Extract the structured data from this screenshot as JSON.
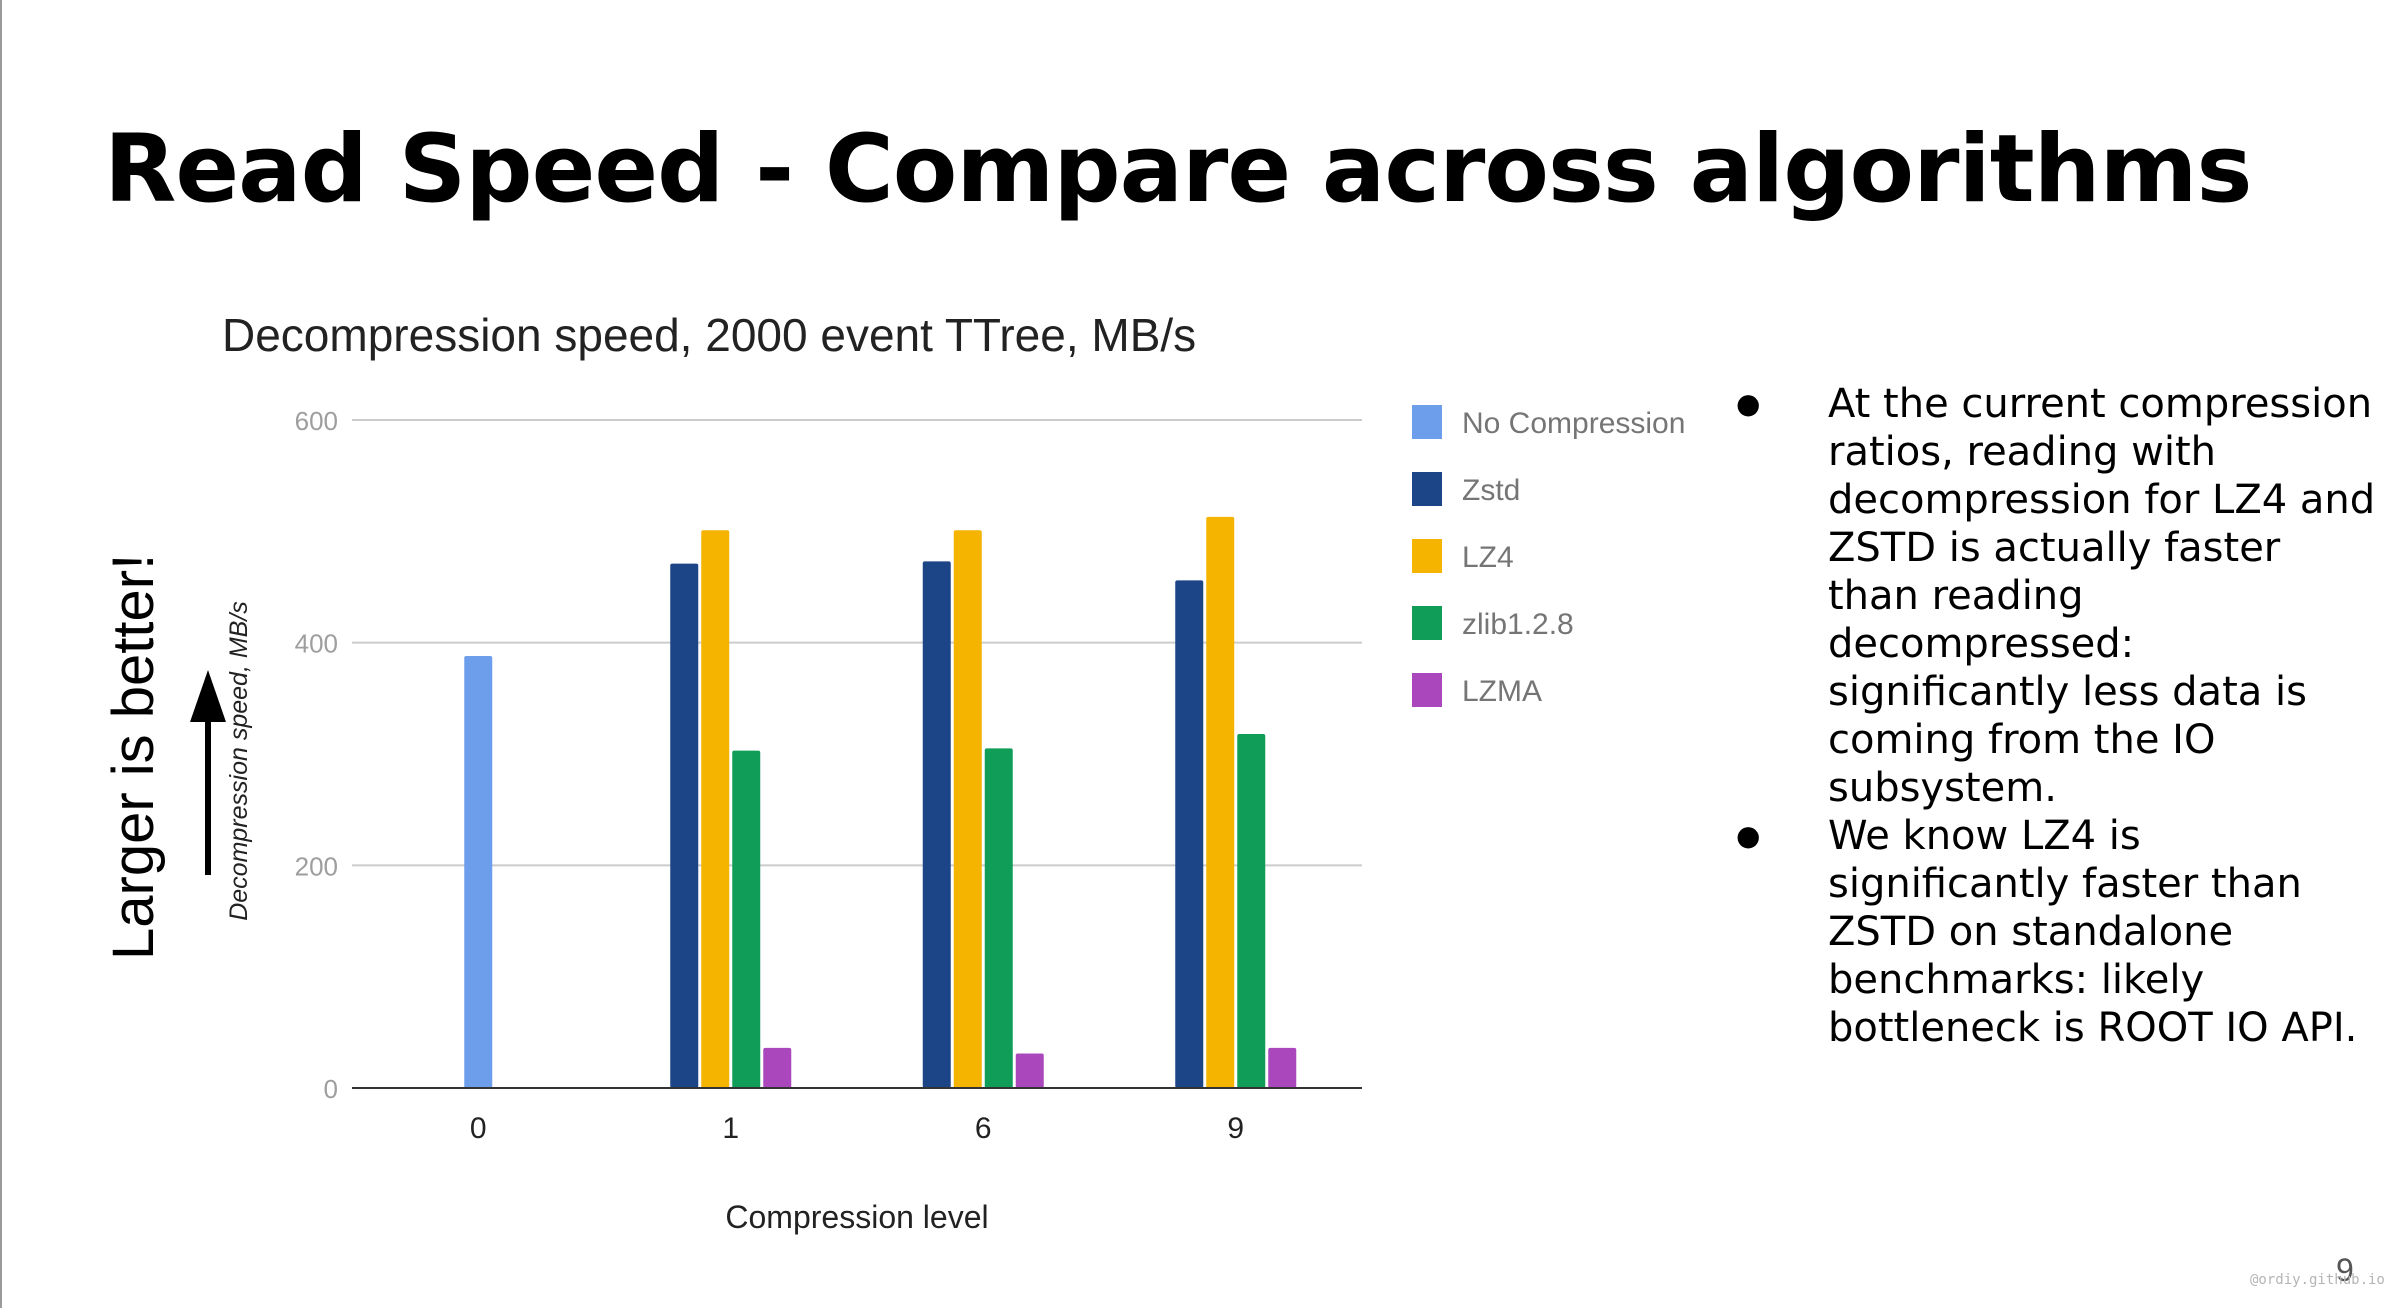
{
  "slide": {
    "title": "Read Speed - Compare across algorithms",
    "side_note": "Larger is better!",
    "page_number": "9",
    "watermark": "@ordiy.github.io",
    "bullets": [
      "At the current compression ratios, reading with decompression for LZ4 and ZSTD is actually faster than reading decompressed: significantly less data is coming from the IO subsystem.",
      "We know LZ4 is significantly faster than ZSTD on standalone benchmarks: likely bottleneck is ROOT IO API."
    ]
  },
  "chart_data": {
    "type": "bar",
    "title": "Decompression speed, 2000 event TTree, MB/s",
    "xlabel": "Compression level",
    "ylabel": "Decompression speed, MB/s",
    "categories": [
      "0",
      "1",
      "6",
      "9"
    ],
    "yticks": [
      "0",
      "200",
      "400",
      "600"
    ],
    "ylim": [
      0,
      600
    ],
    "grid": true,
    "legend_position": "right",
    "series": [
      {
        "name": "No Compression",
        "color": "#6d9eeb",
        "values": [
          388,
          null,
          null,
          null
        ]
      },
      {
        "name": "Zstd",
        "color": "#1c4587",
        "values": [
          null,
          471,
          473,
          456
        ]
      },
      {
        "name": "LZ4",
        "color": "#f4b400",
        "values": [
          null,
          501,
          501,
          513
        ]
      },
      {
        "name": "zlib1.2.8",
        "color": "#0f9d58",
        "values": [
          null,
          303,
          305,
          318
        ]
      },
      {
        "name": "LZMA",
        "color": "#ab47bc",
        "values": [
          null,
          36,
          31,
          36
        ]
      }
    ]
  }
}
